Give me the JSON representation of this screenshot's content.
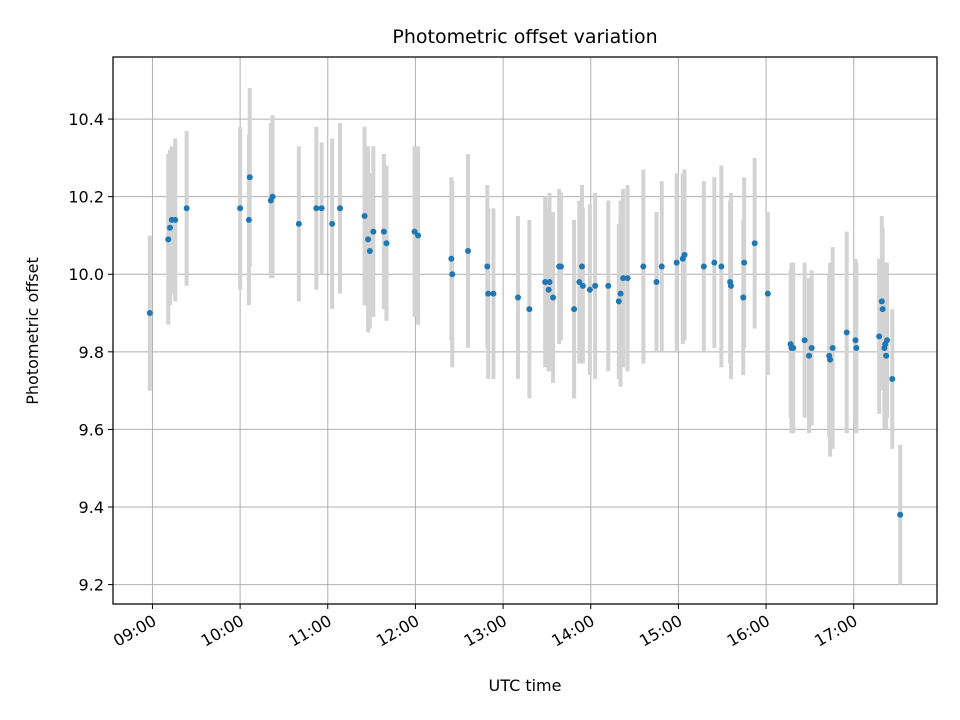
{
  "chart_data": {
    "type": "scatter",
    "title": "Photometric offset variation",
    "xlabel": "UTC time",
    "ylabel": "Photometric offset",
    "x_unit": "hours UTC",
    "xlim": [
      8.55,
      17.95
    ],
    "ylim": [
      9.15,
      10.56
    ],
    "yticks": [
      9.2,
      9.4,
      9.6,
      9.8,
      10.0,
      10.2,
      10.4
    ],
    "ytick_labels": [
      "9.2",
      "9.4",
      "9.6",
      "9.8",
      "10.0",
      "10.2",
      "10.4"
    ],
    "xticks": [
      9,
      10,
      11,
      12,
      13,
      14,
      15,
      16,
      17
    ],
    "xtick_labels": [
      "09:00",
      "10:00",
      "11:00",
      "12:00",
      "13:00",
      "14:00",
      "15:00",
      "16:00",
      "17:00"
    ],
    "grid": true,
    "marker_color": "#1f77b4",
    "errorbar_color": "#d3d3d3",
    "series": [
      {
        "points": [
          [
            8.97,
            9.9,
            0.2
          ],
          [
            9.18,
            10.09,
            0.22
          ],
          [
            9.2,
            10.12,
            0.2
          ],
          [
            9.22,
            10.14,
            0.19
          ],
          [
            9.26,
            10.14,
            0.21
          ],
          [
            9.39,
            10.17,
            0.2
          ],
          [
            10.0,
            10.17,
            0.21
          ],
          [
            10.1,
            10.14,
            0.22
          ],
          [
            10.11,
            10.25,
            0.23
          ],
          [
            10.35,
            10.19,
            0.2
          ],
          [
            10.37,
            10.2,
            0.21
          ],
          [
            10.67,
            10.13,
            0.2
          ],
          [
            10.87,
            10.17,
            0.21
          ],
          [
            10.93,
            10.17,
            0.17
          ],
          [
            11.05,
            10.13,
            0.22
          ],
          [
            11.14,
            10.17,
            0.22
          ],
          [
            11.42,
            10.15,
            0.23
          ],
          [
            11.46,
            10.09,
            0.24
          ],
          [
            11.48,
            10.06,
            0.2
          ],
          [
            11.52,
            10.11,
            0.22
          ],
          [
            11.64,
            10.11,
            0.2
          ],
          [
            11.67,
            10.08,
            0.2
          ],
          [
            11.99,
            10.11,
            0.22
          ],
          [
            12.03,
            10.1,
            0.23
          ],
          [
            12.41,
            10.04,
            0.21
          ],
          [
            12.42,
            10.0,
            0.24
          ],
          [
            12.6,
            10.06,
            0.25
          ],
          [
            12.82,
            10.02,
            0.21
          ],
          [
            12.83,
            9.95,
            0.22
          ],
          [
            12.89,
            9.95,
            0.22
          ],
          [
            13.17,
            9.94,
            0.21
          ],
          [
            13.3,
            9.91,
            0.23
          ],
          [
            13.48,
            9.98,
            0.22
          ],
          [
            13.52,
            9.96,
            0.21
          ],
          [
            13.53,
            9.98,
            0.23
          ],
          [
            13.57,
            9.94,
            0.22
          ],
          [
            13.64,
            10.02,
            0.2
          ],
          [
            13.66,
            10.02,
            0.19
          ],
          [
            13.81,
            9.91,
            0.23
          ],
          [
            13.87,
            9.98,
            0.21
          ],
          [
            13.9,
            10.02,
            0.21
          ],
          [
            13.91,
            9.97,
            0.2
          ],
          [
            13.99,
            9.96,
            0.22
          ],
          [
            14.05,
            9.97,
            0.24
          ],
          [
            14.2,
            9.97,
            0.22
          ],
          [
            14.32,
            9.93,
            0.2
          ],
          [
            14.34,
            9.95,
            0.24
          ],
          [
            14.37,
            9.99,
            0.23
          ],
          [
            14.42,
            9.99,
            0.24
          ],
          [
            14.6,
            10.02,
            0.25
          ],
          [
            14.75,
            9.98,
            0.18
          ],
          [
            14.81,
            10.02,
            0.22
          ],
          [
            14.98,
            10.03,
            0.23
          ],
          [
            15.05,
            10.04,
            0.22
          ],
          [
            15.07,
            10.05,
            0.22
          ],
          [
            15.29,
            10.02,
            0.22
          ],
          [
            15.41,
            10.03,
            0.22
          ],
          [
            15.49,
            10.02,
            0.26
          ],
          [
            15.59,
            9.98,
            0.21
          ],
          [
            15.6,
            9.97,
            0.24
          ],
          [
            15.74,
            9.94,
            0.2
          ],
          [
            15.75,
            10.03,
            0.22
          ],
          [
            15.87,
            10.08,
            0.22
          ],
          [
            16.02,
            9.95,
            0.21
          ],
          [
            16.28,
            9.82,
            0.19
          ],
          [
            16.29,
            9.81,
            0.22
          ],
          [
            16.31,
            9.81,
            0.22
          ],
          [
            16.44,
            9.83,
            0.2
          ],
          [
            16.49,
            9.79,
            0.2
          ],
          [
            16.52,
            9.81,
            0.2
          ],
          [
            16.72,
            9.79,
            0.21
          ],
          [
            16.73,
            9.78,
            0.25
          ],
          [
            16.76,
            9.81,
            0.26
          ],
          [
            16.92,
            9.85,
            0.26
          ],
          [
            17.02,
            9.83,
            0.21
          ],
          [
            17.03,
            9.81,
            0.22
          ],
          [
            17.29,
            9.84,
            0.2
          ],
          [
            17.32,
            9.93,
            0.22
          ],
          [
            17.33,
            9.91,
            0.21
          ],
          [
            17.35,
            9.81,
            0.21
          ],
          [
            17.36,
            9.82,
            0.21
          ],
          [
            17.37,
            9.79,
            0.19
          ],
          [
            17.38,
            9.83,
            0.2
          ],
          [
            17.44,
            9.73,
            0.18
          ],
          [
            17.53,
            9.38,
            0.18
          ]
        ]
      }
    ]
  }
}
